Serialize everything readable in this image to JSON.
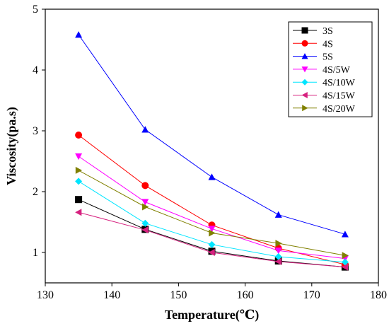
{
  "chart_data": {
    "type": "line",
    "xlabel": "Temperature(℃)",
    "ylabel": "Viscosity(pa.s)",
    "xlim": [
      130,
      180
    ],
    "ylim": [
      0.5,
      5
    ],
    "x_ticks": [
      130,
      140,
      150,
      160,
      170,
      180
    ],
    "y_ticks": [
      1,
      2,
      3,
      4,
      5
    ],
    "grid": false,
    "legend_position": "top-right",
    "x": [
      135,
      145,
      155,
      165,
      175
    ],
    "series": [
      {
        "name": "3S",
        "color": "#000000",
        "marker": "square",
        "values": [
          1.87,
          1.38,
          1.02,
          0.86,
          0.76
        ]
      },
      {
        "name": "4S",
        "color": "#ff0000",
        "marker": "circle",
        "values": [
          2.93,
          2.1,
          1.45,
          1.07,
          0.8
        ]
      },
      {
        "name": "5S",
        "color": "#0000ff",
        "marker": "triangle-up",
        "values": [
          4.58,
          3.02,
          2.24,
          1.62,
          1.3
        ]
      },
      {
        "name": "4S/5W",
        "color": "#ff00ff",
        "marker": "triangle-down",
        "values": [
          2.58,
          1.83,
          1.39,
          1.03,
          0.9
        ]
      },
      {
        "name": "4S/10W",
        "color": "#00e5ff",
        "marker": "diamond",
        "values": [
          2.17,
          1.48,
          1.13,
          0.93,
          0.84
        ]
      },
      {
        "name": "4S/15W",
        "color": "#d6217f",
        "marker": "triangle-left",
        "values": [
          1.66,
          1.37,
          1.0,
          0.85,
          0.76
        ]
      },
      {
        "name": "4S/20W",
        "color": "#808000",
        "marker": "triangle-right",
        "values": [
          2.35,
          1.75,
          1.32,
          1.15,
          0.95
        ]
      }
    ]
  }
}
